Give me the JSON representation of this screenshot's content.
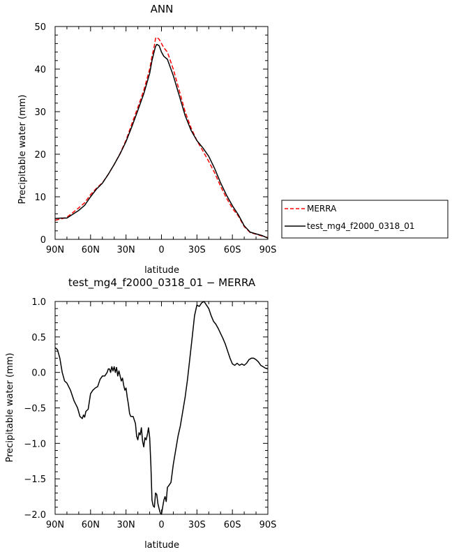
{
  "chart_data": [
    {
      "type": "line",
      "title": "ANN",
      "xlabel": "latitude",
      "ylabel": "Precipitable water (mm)",
      "xlim": [
        -90,
        90
      ],
      "ylim": [
        0,
        50
      ],
      "x_ticks": [
        -90,
        -60,
        -30,
        0,
        30,
        60,
        90
      ],
      "x_tick_labels": [
        "90N",
        "60N",
        "30N",
        "0",
        "30S",
        "60S",
        "90S"
      ],
      "y_ticks": [
        0,
        10,
        20,
        30,
        40,
        50
      ],
      "y_tick_labels": [
        "0",
        "10",
        "20",
        "30",
        "40",
        "50"
      ],
      "legend_position": "right",
      "series": [
        {
          "name": "MERRA",
          "color": "#ff0000",
          "dash": "dashed",
          "x": [
            -90,
            -85,
            -80,
            -75,
            -70,
            -65,
            -60,
            -55,
            -50,
            -45,
            -40,
            -35,
            -30,
            -25,
            -20,
            -15,
            -10,
            -8,
            -6,
            -5,
            -4,
            -2,
            0,
            2,
            5,
            10,
            15,
            20,
            25,
            30,
            35,
            40,
            45,
            50,
            55,
            60,
            65,
            70,
            75,
            80,
            85,
            90
          ],
          "y": [
            4.5,
            4.8,
            5.2,
            6.3,
            7.4,
            8.6,
            10.5,
            12.0,
            13.3,
            15.3,
            17.6,
            20.2,
            23.3,
            27.2,
            31.0,
            35.0,
            40.0,
            43.0,
            45.5,
            47.2,
            47.5,
            47.0,
            46.0,
            45.0,
            44.0,
            40.0,
            35.0,
            30.0,
            26.2,
            23.2,
            20.8,
            18.3,
            15.6,
            12.5,
            9.7,
            7.3,
            5.5,
            3.0,
            1.6,
            1.2,
            0.8,
            0.4
          ]
        },
        {
          "name": "test_mg4_f2000_0318_01",
          "color": "#000000",
          "dash": "solid",
          "x": [
            -90,
            -85,
            -80,
            -75,
            -70,
            -65,
            -60,
            -55,
            -50,
            -45,
            -40,
            -35,
            -30,
            -25,
            -20,
            -15,
            -10,
            -8,
            -6,
            -5,
            -4,
            -2,
            0,
            2,
            5,
            10,
            15,
            20,
            25,
            30,
            35,
            40,
            45,
            50,
            55,
            60,
            65,
            70,
            75,
            80,
            85,
            90
          ],
          "y": [
            4.9,
            5.0,
            5.0,
            5.9,
            6.8,
            8.0,
            10.0,
            11.8,
            13.2,
            15.3,
            17.6,
            20.1,
            23.0,
            26.5,
            30.3,
            34.2,
            39.0,
            42.0,
            44.3,
            45.3,
            45.8,
            45.5,
            44.0,
            43.0,
            42.3,
            38.5,
            33.8,
            29.1,
            25.6,
            23.2,
            21.5,
            19.5,
            16.6,
            13.3,
            10.4,
            7.9,
            5.8,
            3.2,
            1.7,
            1.3,
            0.9,
            0.3
          ]
        }
      ]
    },
    {
      "type": "line",
      "title": "test_mg4_f2000_0318_01 − MERRA",
      "xlabel": "latitude",
      "ylabel": "Precipitable water (mm)",
      "xlim": [
        -90,
        90
      ],
      "ylim": [
        -2.0,
        1.0
      ],
      "x_ticks": [
        -90,
        -60,
        -30,
        0,
        30,
        60,
        90
      ],
      "x_tick_labels": [
        "90N",
        "60N",
        "30N",
        "0",
        "30S",
        "60S",
        "90S"
      ],
      "y_ticks": [
        -2.0,
        -1.5,
        -1.0,
        -0.5,
        0.0,
        0.5,
        1.0
      ],
      "y_tick_labels": [
        "−2.0",
        "−1.5",
        "−1.0",
        "−0.5",
        "0.0",
        "0.5",
        "1.0"
      ],
      "series": [
        {
          "name": "",
          "color": "#000000",
          "dash": "solid",
          "x": [
            -90,
            -88,
            -86,
            -84,
            -82,
            -80,
            -77,
            -74,
            -71,
            -69,
            -67,
            -66,
            -65,
            -64,
            -62,
            -60,
            -58,
            -56,
            -54,
            -52,
            -50,
            -48,
            -46,
            -45,
            -44,
            -43,
            -42,
            -41,
            -40,
            -39,
            -38,
            -37,
            -36,
            -35,
            -34,
            -33,
            -32,
            -31,
            -30,
            -29,
            -28,
            -27,
            -26,
            -24,
            -22,
            -21,
            -20,
            -19,
            -18,
            -17,
            -16,
            -15,
            -14,
            -13,
            -12,
            -11,
            -10,
            -9,
            -8,
            -7,
            -6,
            -5,
            -4,
            -3,
            -2,
            -1,
            0,
            1,
            2,
            3,
            4,
            5,
            6,
            8,
            10,
            12,
            14,
            16,
            18,
            20,
            22,
            24,
            26,
            28,
            30,
            32,
            34,
            36,
            38,
            40,
            42,
            44,
            46,
            48,
            50,
            52,
            54,
            56,
            58,
            60,
            62,
            64,
            66,
            68,
            70,
            72,
            74,
            76,
            78,
            80,
            82,
            84,
            86,
            88,
            90
          ],
          "y": [
            0.35,
            0.32,
            0.2,
            0.0,
            -0.12,
            -0.15,
            -0.25,
            -0.4,
            -0.5,
            -0.62,
            -0.65,
            -0.6,
            -0.63,
            -0.55,
            -0.52,
            -0.3,
            -0.25,
            -0.22,
            -0.2,
            -0.1,
            -0.05,
            -0.05,
            0.0,
            0.05,
            0.05,
            0.0,
            0.08,
            0.02,
            0.08,
            0.0,
            0.07,
            -0.05,
            0.02,
            -0.05,
            -0.12,
            -0.08,
            -0.18,
            -0.25,
            -0.22,
            -0.35,
            -0.45,
            -0.58,
            -0.62,
            -0.62,
            -0.72,
            -0.9,
            -0.95,
            -0.85,
            -0.88,
            -0.78,
            -0.97,
            -1.05,
            -0.92,
            -0.95,
            -0.88,
            -0.78,
            -0.92,
            -1.3,
            -1.8,
            -1.88,
            -1.9,
            -1.7,
            -1.72,
            -1.85,
            -1.92,
            -1.98,
            -2.0,
            -1.9,
            -1.8,
            -1.75,
            -1.82,
            -1.62,
            -1.6,
            -1.55,
            -1.3,
            -1.1,
            -0.9,
            -0.75,
            -0.55,
            -0.35,
            -0.1,
            0.2,
            0.5,
            0.8,
            0.95,
            0.93,
            0.98,
            1.0,
            0.95,
            0.9,
            0.8,
            0.72,
            0.68,
            0.62,
            0.55,
            0.48,
            0.4,
            0.3,
            0.2,
            0.12,
            0.1,
            0.13,
            0.1,
            0.12,
            0.1,
            0.13,
            0.18,
            0.2,
            0.2,
            0.18,
            0.15,
            0.1,
            0.08,
            0.06,
            0.05
          ]
        }
      ]
    }
  ]
}
